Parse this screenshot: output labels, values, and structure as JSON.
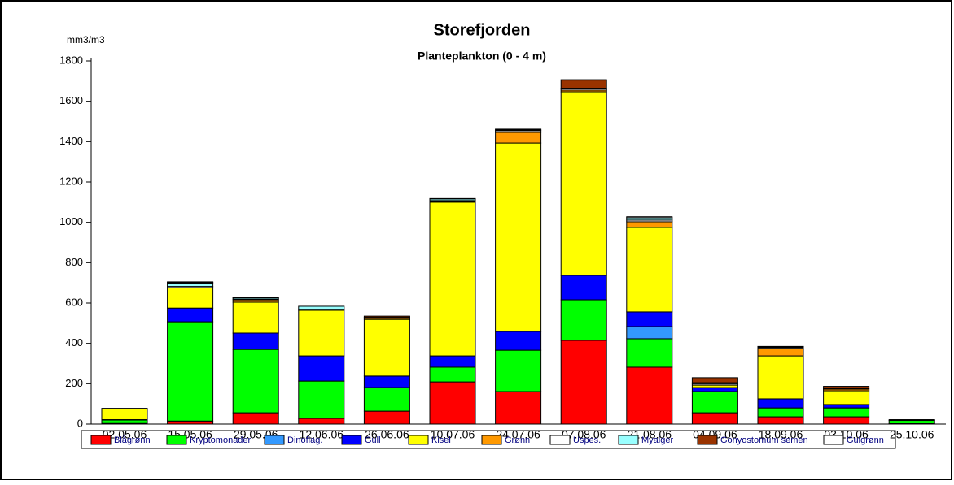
{
  "chart_data": {
    "type": "stacked-bar",
    "title": "Storefjorden",
    "subtitle": "Planteplankton (0 - 4 m)",
    "y_label": "mm3/m3",
    "categories": [
      "02.05.06",
      "15.05.06",
      "29.05.06",
      "12.06.06",
      "26.06.06",
      "10.07.06",
      "24.07.06",
      "07.08.06",
      "21.08.06",
      "04.09.06",
      "18.09.06",
      "03.10.06",
      "25.10.06"
    ],
    "series": [
      {
        "name": "Blågrønn",
        "color": "#ff0000",
        "values": [
          3,
          15,
          56,
          28,
          64,
          209,
          161,
          415,
          282,
          56,
          36,
          36,
          2
        ]
      },
      {
        "name": "Kryptomonader",
        "color": "#00ff00",
        "values": [
          17,
          492,
          314,
          185,
          117,
          73,
          205,
          201,
          141,
          105,
          44,
          44,
          16
        ]
      },
      {
        "name": "Dinoflag.",
        "color": "#3399ff",
        "values": [
          0,
          0,
          0,
          0,
          0,
          0,
          0,
          0,
          60,
          0,
          0,
          0,
          0
        ]
      },
      {
        "name": "Gull",
        "color": "#0000ff",
        "values": [
          2,
          68,
          81,
          125,
          57,
          56,
          93,
          121,
          73,
          20,
          45,
          17,
          0
        ]
      },
      {
        "name": "Kisel",
        "color": "#ffff00",
        "values": [
          53,
          101,
          153,
          226,
          281,
          762,
          934,
          910,
          419,
          12,
          213,
          68,
          0
        ]
      },
      {
        "name": "Grønn",
        "color": "#ff9900",
        "values": [
          0,
          0,
          12,
          2,
          6,
          4,
          53,
          8,
          28,
          0,
          36,
          8,
          0
        ]
      },
      {
        "name": "Uspes.",
        "color": "#ffffff",
        "values": [
          2,
          6,
          4,
          3,
          4,
          4,
          8,
          6,
          8,
          6,
          5,
          3,
          0
        ]
      },
      {
        "name": "Myalger",
        "color": "#99ffff",
        "values": [
          1,
          17,
          6,
          15,
          0,
          8,
          4,
          4,
          12,
          6,
          4,
          0,
          0
        ]
      },
      {
        "name": "Gonyostomum semen",
        "color": "#993300",
        "values": [
          0,
          4,
          3,
          0,
          6,
          0,
          0,
          40,
          0,
          25,
          0,
          11,
          4
        ]
      },
      {
        "name": "Gulgrønn",
        "color": "#ffffff",
        "values": [
          0,
          2,
          0,
          0,
          0,
          2,
          4,
          2,
          5,
          0,
          2,
          0,
          0
        ]
      }
    ],
    "ylim": [
      0,
      1800
    ],
    "yticks": [
      0,
      200,
      400,
      600,
      800,
      1000,
      1200,
      1400,
      1600,
      1800
    ]
  }
}
